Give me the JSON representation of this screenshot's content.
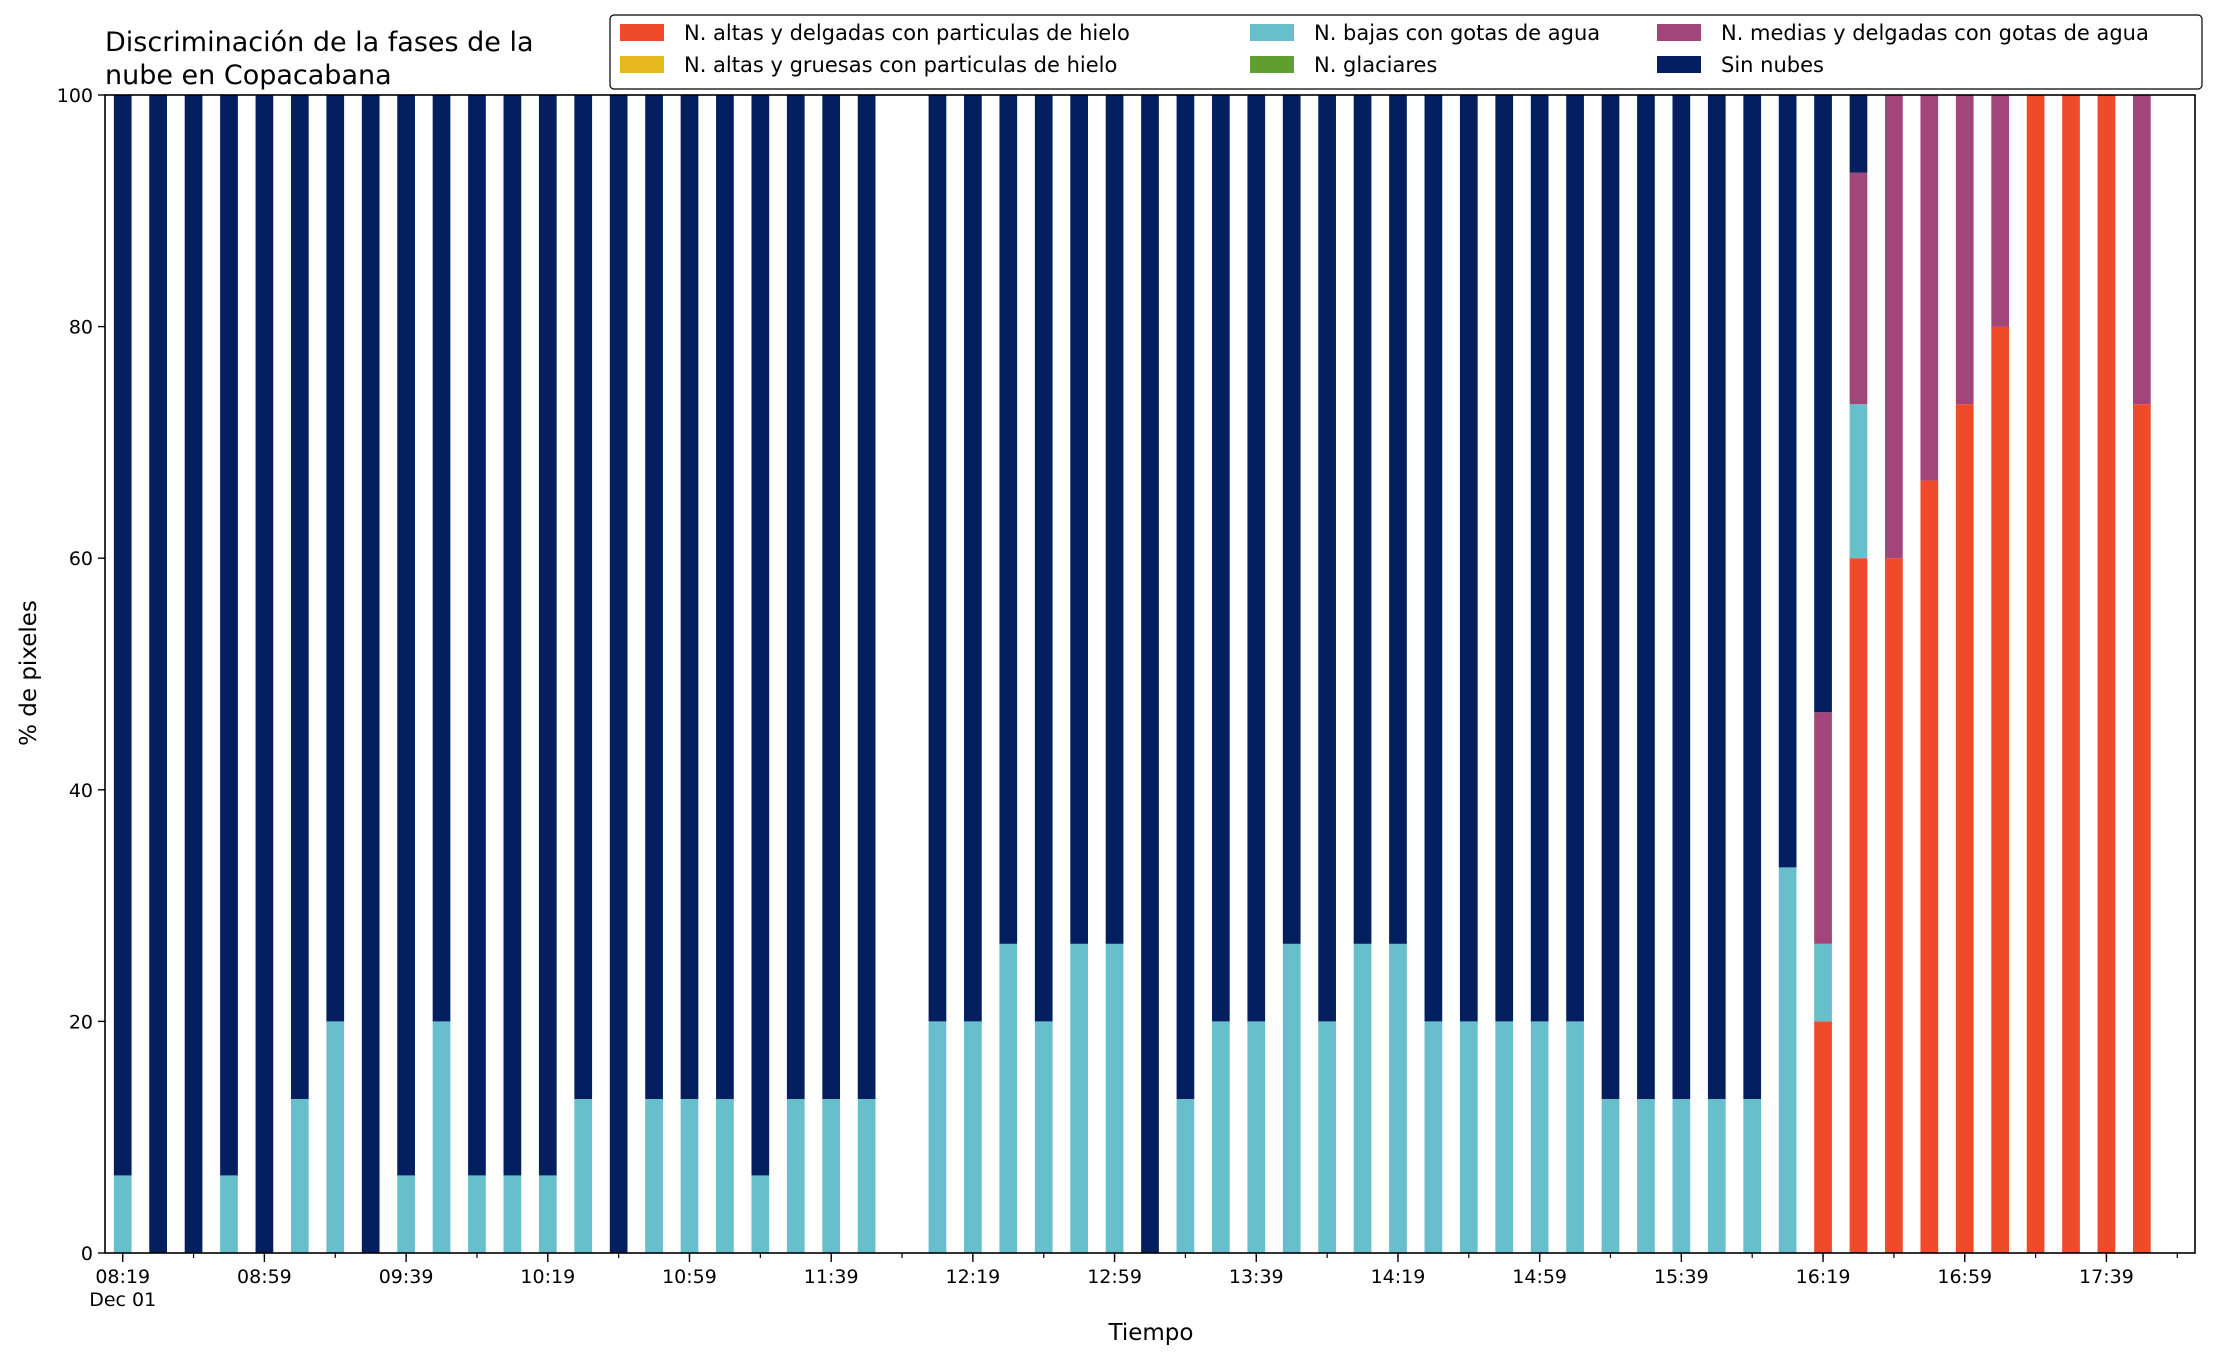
{
  "chart_data": {
    "type": "bar",
    "stacked": true,
    "title": "Discriminación de la fases de la\nnube en Copacabana",
    "xlabel": "Tiempo",
    "ylabel": "% de pixeles",
    "ylim": [
      0,
      100
    ],
    "yticks": [
      0,
      20,
      40,
      60,
      80,
      100
    ],
    "xlim": [
      "08:14",
      "18:04"
    ],
    "bar_interval_minutes": 10,
    "bar_width_minutes": 5,
    "x": [
      "08:19",
      "08:29",
      "08:39",
      "08:49",
      "08:59",
      "09:09",
      "09:19",
      "09:29",
      "09:39",
      "09:49",
      "09:59",
      "10:09",
      "10:19",
      "10:29",
      "10:39",
      "10:49",
      "10:59",
      "11:09",
      "11:19",
      "11:29",
      "11:39",
      "11:49",
      "11:59",
      "12:09",
      "12:19",
      "12:29",
      "12:39",
      "12:49",
      "12:59",
      "13:09",
      "13:19",
      "13:29",
      "13:39",
      "13:49",
      "13:59",
      "14:09",
      "14:19",
      "14:29",
      "14:39",
      "14:49",
      "14:59",
      "15:09",
      "15:19",
      "15:29",
      "15:39",
      "15:49",
      "15:59",
      "16:09",
      "16:19",
      "16:29",
      "16:39",
      "16:49",
      "16:59",
      "17:09",
      "17:19",
      "17:29",
      "17:39",
      "17:49"
    ],
    "xtick_labels": [
      {
        "x": "08:19",
        "label": "08:19",
        "sublabel": "Dec 01"
      },
      {
        "x": "08:59",
        "label": "08:59"
      },
      {
        "x": "09:39",
        "label": "09:39"
      },
      {
        "x": "10:19",
        "label": "10:19"
      },
      {
        "x": "10:59",
        "label": "10:59"
      },
      {
        "x": "11:39",
        "label": "11:39"
      },
      {
        "x": "12:19",
        "label": "12:19"
      },
      {
        "x": "12:59",
        "label": "12:59"
      },
      {
        "x": "13:39",
        "label": "13:39"
      },
      {
        "x": "14:19",
        "label": "14:19"
      },
      {
        "x": "14:59",
        "label": "14:59"
      },
      {
        "x": "15:39",
        "label": "15:39"
      },
      {
        "x": "16:19",
        "label": "16:19"
      },
      {
        "x": "16:59",
        "label": "16:59"
      },
      {
        "x": "17:39",
        "label": "17:39"
      }
    ],
    "legend_position": "top-right",
    "series": [
      {
        "name": "N. altas y delgadas con particulas de hielo",
        "color": "#ef4a2a",
        "values": [
          0,
          0,
          0,
          0,
          0,
          0,
          0,
          0,
          0,
          0,
          0,
          0,
          0,
          0,
          0,
          0,
          0,
          0,
          0,
          0,
          0,
          0,
          0,
          0,
          0,
          0,
          0,
          0,
          0,
          0,
          0,
          0,
          0,
          0,
          0,
          0,
          0,
          0,
          0,
          0,
          0,
          0,
          0,
          0,
          0,
          0,
          0,
          0,
          20,
          60,
          60,
          66.7,
          73.3,
          80,
          100,
          100,
          100,
          73.3
        ]
      },
      {
        "name": "N. altas y gruesas con particulas de hielo",
        "color": "#e6b91e",
        "values": [
          0,
          0,
          0,
          0,
          0,
          0,
          0,
          0,
          0,
          0,
          0,
          0,
          0,
          0,
          0,
          0,
          0,
          0,
          0,
          0,
          0,
          0,
          0,
          0,
          0,
          0,
          0,
          0,
          0,
          0,
          0,
          0,
          0,
          0,
          0,
          0,
          0,
          0,
          0,
          0,
          0,
          0,
          0,
          0,
          0,
          0,
          0,
          0,
          0,
          0,
          0,
          0,
          0,
          0,
          0,
          0,
          0,
          0
        ]
      },
      {
        "name": "N. bajas con gotas de agua",
        "color": "#66bfcb",
        "values": [
          6.7,
          0,
          0,
          6.7,
          0,
          13.3,
          20,
          0,
          6.7,
          20,
          6.7,
          6.7,
          6.7,
          13.3,
          0,
          13.3,
          13.3,
          13.3,
          6.7,
          13.3,
          13.3,
          13.3,
          0,
          20,
          20,
          26.7,
          20,
          26.7,
          26.7,
          0,
          13.3,
          20,
          20,
          26.7,
          20,
          26.7,
          26.7,
          20,
          20,
          20,
          20,
          20,
          13.3,
          13.3,
          13.3,
          13.3,
          13.3,
          33.3,
          6.7,
          13.3,
          0,
          0,
          0,
          0,
          0,
          0,
          0,
          0
        ]
      },
      {
        "name": "N. glaciares",
        "color": "#5f9e2f",
        "values": [
          0,
          0,
          0,
          0,
          0,
          0,
          0,
          0,
          0,
          0,
          0,
          0,
          0,
          0,
          0,
          0,
          0,
          0,
          0,
          0,
          0,
          0,
          0,
          0,
          0,
          0,
          0,
          0,
          0,
          0,
          0,
          0,
          0,
          0,
          0,
          0,
          0,
          0,
          0,
          0,
          0,
          0,
          0,
          0,
          0,
          0,
          0,
          0,
          0,
          0,
          0,
          0,
          0,
          0,
          0,
          0,
          0,
          0
        ]
      },
      {
        "name": "N. medias y delgadas con gotas de agua",
        "color": "#a2457a",
        "values": [
          0,
          0,
          0,
          0,
          0,
          0,
          0,
          0,
          0,
          0,
          0,
          0,
          0,
          0,
          0,
          0,
          0,
          0,
          0,
          0,
          0,
          0,
          0,
          0,
          0,
          0,
          0,
          0,
          0,
          0,
          0,
          0,
          0,
          0,
          0,
          0,
          0,
          0,
          0,
          0,
          0,
          0,
          0,
          0,
          0,
          0,
          0,
          0,
          20,
          20,
          40,
          33.3,
          26.7,
          20,
          0,
          0,
          0,
          26.7
        ]
      },
      {
        "name": "Sin nubes",
        "color": "#031f5f",
        "values": [
          93.3,
          100,
          100,
          93.3,
          100,
          86.7,
          80,
          100,
          93.3,
          80,
          93.3,
          93.3,
          93.3,
          86.7,
          100,
          86.7,
          86.7,
          86.7,
          93.3,
          86.7,
          86.7,
          86.7,
          0,
          80,
          80,
          73.3,
          80,
          73.3,
          73.3,
          100,
          86.7,
          80,
          80,
          73.3,
          80,
          73.3,
          73.3,
          80,
          80,
          80,
          80,
          80,
          86.7,
          86.7,
          86.7,
          86.7,
          86.7,
          66.7,
          53.3,
          6.7,
          0,
          0,
          0,
          0,
          0,
          0,
          0,
          0
        ]
      }
    ]
  }
}
